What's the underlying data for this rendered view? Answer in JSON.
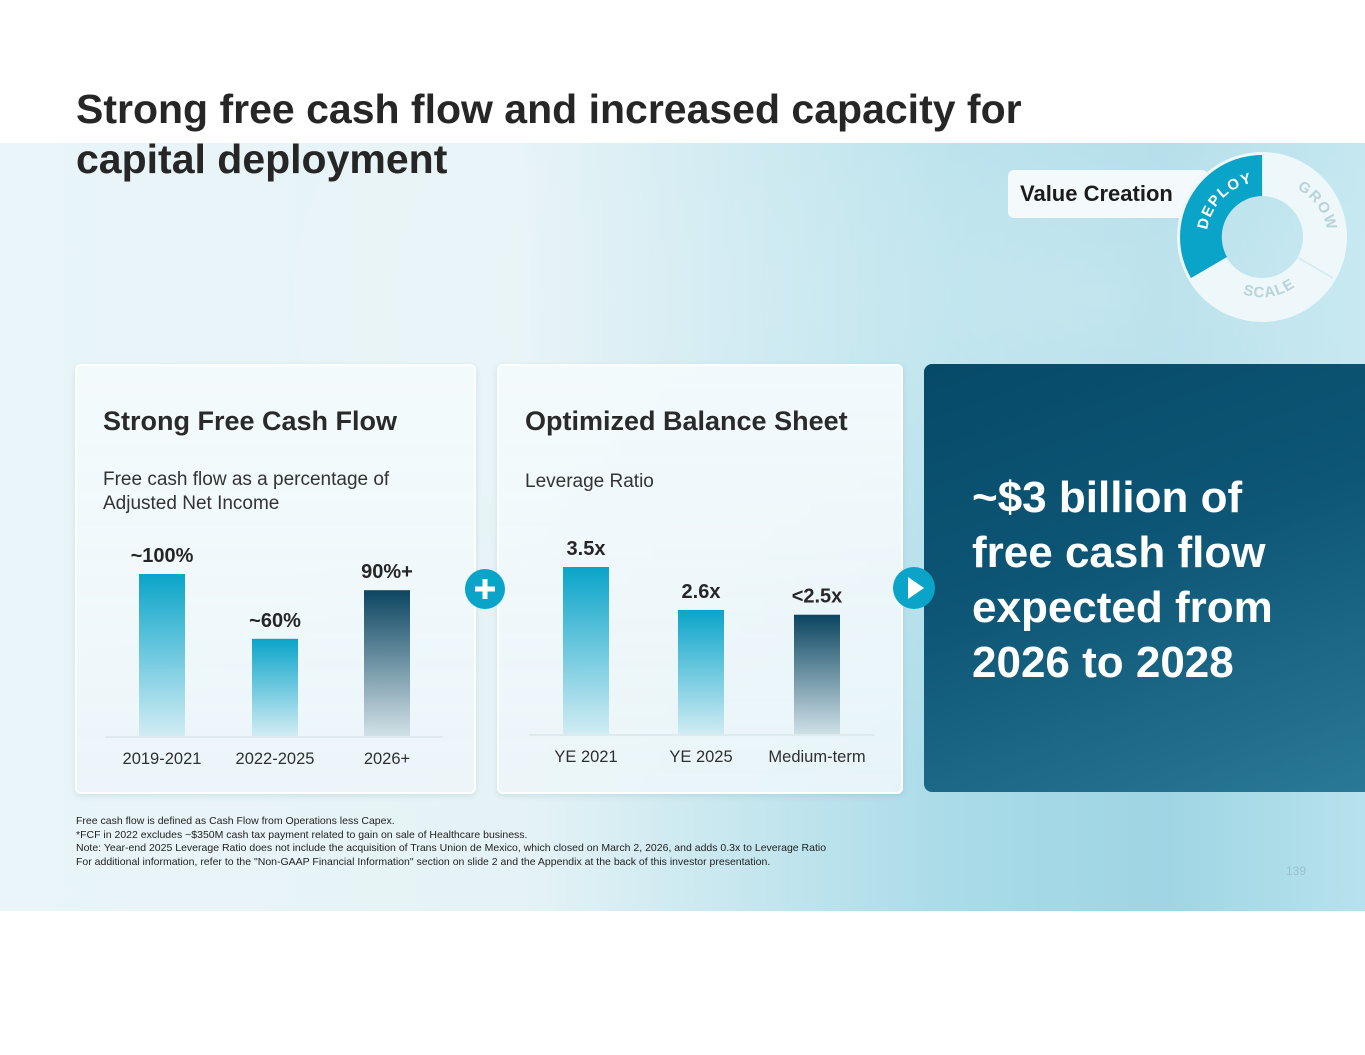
{
  "title": "Strong free cash flow and increased capacity for capital deployment",
  "value_creation": {
    "label": "Value Creation",
    "segments": [
      "DEPLOY",
      "GROW",
      "SCALE"
    ],
    "active": "DEPLOY"
  },
  "panels": {
    "fcf": {
      "title": "Strong Free Cash Flow",
      "subtitle_line1": "Free cash flow as a percentage of",
      "subtitle_line2": "Adjusted Net Income"
    },
    "balance": {
      "title": "Optimized Balance Sheet",
      "subtitle": "Leverage Ratio"
    }
  },
  "chart_data": [
    {
      "type": "bar",
      "title": "Strong Free Cash Flow",
      "ylabel": "Free cash flow as a percentage of Adjusted Net Income",
      "categories": [
        "2019-2021",
        "2022-2025",
        "2026+"
      ],
      "values": [
        100,
        60,
        90
      ],
      "labels": [
        "~100%",
        "~60%",
        "90%+"
      ],
      "ylim": [
        0,
        100
      ],
      "colors": [
        "#0aa4c9",
        "#0aa4c9",
        "#0b4560"
      ]
    },
    {
      "type": "bar",
      "title": "Optimized Balance Sheet",
      "ylabel": "Leverage Ratio",
      "categories": [
        "YE 2021",
        "YE 2025",
        "Medium-term"
      ],
      "values": [
        3.5,
        2.6,
        2.5
      ],
      "labels": [
        "3.5x",
        "2.6x",
        "<2.5x"
      ],
      "ylim": [
        0,
        3.5
      ],
      "colors": [
        "#0aa4c9",
        "#0aa4c9",
        "#0b4560"
      ]
    }
  ],
  "callout": {
    "line1": "~$3 billion of",
    "line2": "free cash flow",
    "line3": "expected from",
    "line4": "2026 to 2028"
  },
  "footnotes": [
    "Free cash flow is defined as Cash Flow from Operations less Capex.",
    "*FCF in 2022 excludes ~$350M cash tax payment related to gain on sale of Healthcare business.",
    "Note: Year-end 2025 Leverage Ratio does not include the acquisition of Trans Union de Mexico, which closed on March 2, 2026, and adds 0.3x to Leverage Ratio",
    "For additional information, refer to the \"Non-GAAP Financial Information\" section on slide 2 and the Appendix at the back of this investor presentation."
  ],
  "page_number": "139",
  "colors": {
    "accent": "#0aa4c9",
    "dark": "#0b4560",
    "callout_bg": "#0e5676"
  }
}
